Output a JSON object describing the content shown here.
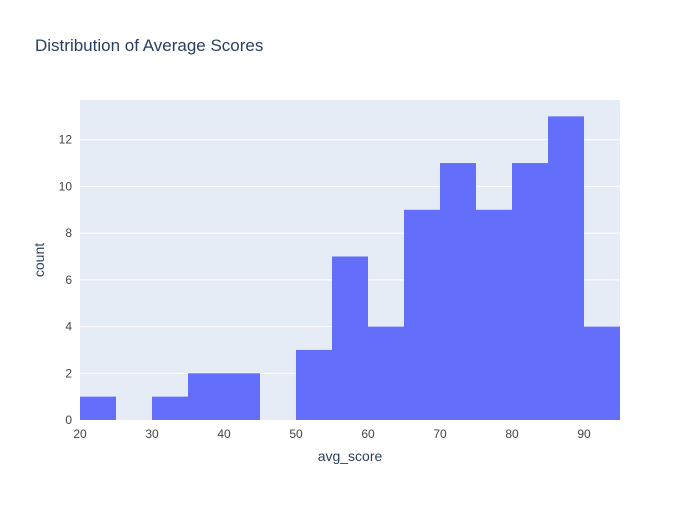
{
  "chart_data": {
    "type": "bar",
    "title": "Distribution of Average Scores",
    "xlabel": "avg_score",
    "ylabel": "count",
    "xlim": [
      20,
      95
    ],
    "ylim": [
      0,
      13.7
    ],
    "xticks": [
      20,
      30,
      40,
      50,
      60,
      70,
      80,
      90
    ],
    "yticks": [
      0,
      2,
      4,
      6,
      8,
      10,
      12
    ],
    "grid": true,
    "bin_width": 5,
    "bins": [
      {
        "start": 20,
        "end": 25,
        "count": 1
      },
      {
        "start": 25,
        "end": 30,
        "count": 0
      },
      {
        "start": 30,
        "end": 35,
        "count": 1
      },
      {
        "start": 35,
        "end": 40,
        "count": 2
      },
      {
        "start": 40,
        "end": 45,
        "count": 2
      },
      {
        "start": 45,
        "end": 50,
        "count": 0
      },
      {
        "start": 50,
        "end": 55,
        "count": 3
      },
      {
        "start": 55,
        "end": 60,
        "count": 7
      },
      {
        "start": 60,
        "end": 65,
        "count": 4
      },
      {
        "start": 65,
        "end": 70,
        "count": 9
      },
      {
        "start": 70,
        "end": 75,
        "count": 11
      },
      {
        "start": 75,
        "end": 80,
        "count": 9
      },
      {
        "start": 80,
        "end": 85,
        "count": 11
      },
      {
        "start": 85,
        "end": 90,
        "count": 13
      },
      {
        "start": 90,
        "end": 95,
        "count": 4
      }
    ],
    "colors": {
      "bar": "#636efa",
      "plot_bg": "#e5ecf6",
      "grid": "#ffffff",
      "text": "#2a3f5f",
      "tick_text": "#444444"
    }
  }
}
